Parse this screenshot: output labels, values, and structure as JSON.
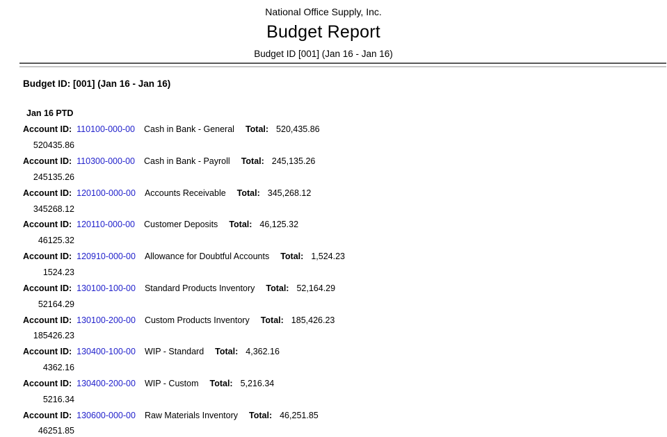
{
  "header": {
    "company": "National Office Supply, Inc.",
    "title": "Budget Report",
    "subtitle": "Budget ID [001] (Jan 16 - Jan 16)"
  },
  "body": {
    "section_title": "Budget ID: [001] (Jan 16 - Jan 16)",
    "period_label": "Jan 16 PTD",
    "account_label": "Account ID:",
    "total_label": "Total:",
    "accounts": [
      {
        "id": "110100-000-00",
        "name": "Cash in Bank - General",
        "total": "520,435.86",
        "ptd": "520435.86"
      },
      {
        "id": "110300-000-00",
        "name": "Cash in Bank - Payroll",
        "total": "245,135.26",
        "ptd": "245135.26"
      },
      {
        "id": "120100-000-00",
        "name": "Accounts Receivable",
        "total": "345,268.12",
        "ptd": "345268.12"
      },
      {
        "id": "120110-000-00",
        "name": "Customer Deposits",
        "total": "46,125.32",
        "ptd": "46125.32"
      },
      {
        "id": "120910-000-00",
        "name": "Allowance for Doubtful Accounts",
        "total": "1,524.23",
        "ptd": "1524.23"
      },
      {
        "id": "130100-100-00",
        "name": "Standard Products Inventory",
        "total": "52,164.29",
        "ptd": "52164.29"
      },
      {
        "id": "130100-200-00",
        "name": "Custom Products Inventory",
        "total": "185,426.23",
        "ptd": "185426.23"
      },
      {
        "id": "130400-100-00",
        "name": "WIP - Standard",
        "total": "4,362.16",
        "ptd": "4362.16"
      },
      {
        "id": "130400-200-00",
        "name": "WIP - Custom",
        "total": "5,216.34",
        "ptd": "5216.34"
      },
      {
        "id": "130600-000-00",
        "name": "Raw Materials Inventory",
        "total": "46,251.85",
        "ptd": "46251.85"
      }
    ]
  },
  "colors": {
    "link": "#2222cc",
    "divider_dark": "#595959",
    "divider_light": "#c6c6c6"
  }
}
